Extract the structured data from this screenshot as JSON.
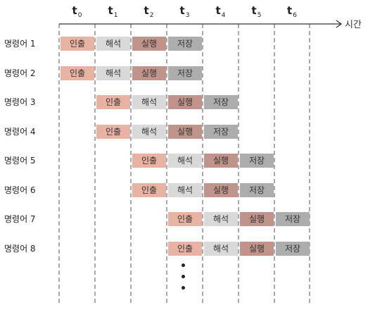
{
  "time_axis": {
    "labels": [
      {
        "base": "t",
        "sub": "0"
      },
      {
        "base": "t",
        "sub": "1"
      },
      {
        "base": "t",
        "sub": "2"
      },
      {
        "base": "t",
        "sub": "3"
      },
      {
        "base": "t",
        "sub": "4"
      },
      {
        "base": "t",
        "sub": "5"
      },
      {
        "base": "t",
        "sub": "6"
      }
    ],
    "axis_label": "시간"
  },
  "stages": [
    {
      "name": "인출",
      "color": "#e8b3a3"
    },
    {
      "name": "해석",
      "color": "#d9d9d9"
    },
    {
      "name": "실행",
      "color": "#c0948b"
    },
    {
      "name": "저장",
      "color": "#adadad"
    }
  ],
  "instructions": [
    {
      "label": "명령어 1",
      "start_slot": 0
    },
    {
      "label": "명령어 2",
      "start_slot": 0
    },
    {
      "label": "명령어 3",
      "start_slot": 1
    },
    {
      "label": "명령어 4",
      "start_slot": 1
    },
    {
      "label": "명령어 5",
      "start_slot": 2
    },
    {
      "label": "명령어 6",
      "start_slot": 2
    },
    {
      "label": "명령어 7",
      "start_slot": 3
    },
    {
      "label": "명령어 8",
      "start_slot": 3
    }
  ],
  "continuation_dots": 3
}
